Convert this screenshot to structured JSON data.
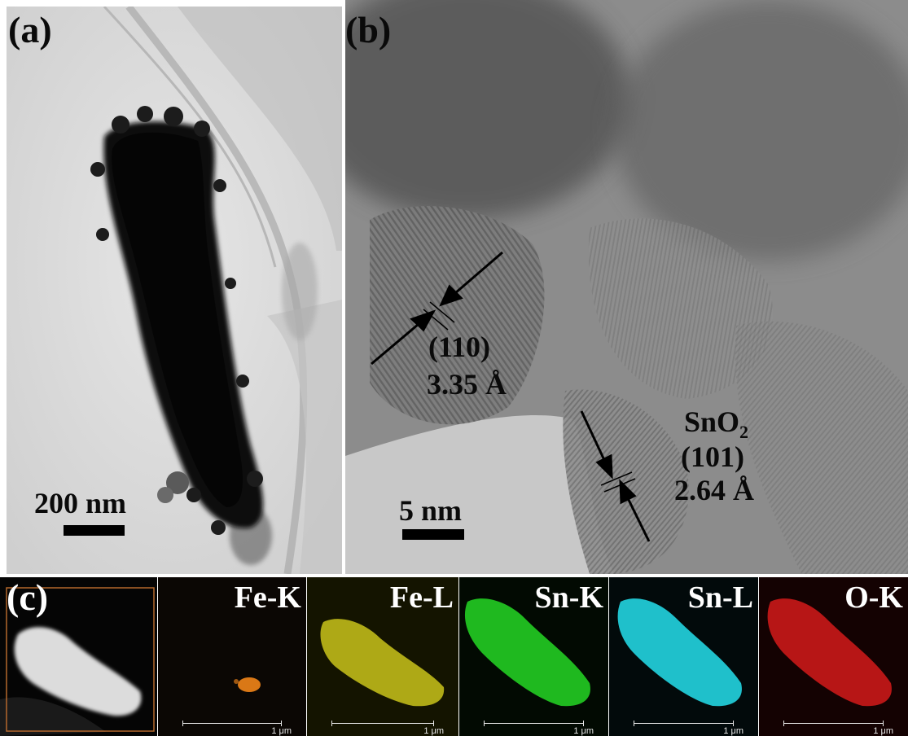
{
  "panel_a": {
    "label": "(a)",
    "scale_bar": "200 nm"
  },
  "panel_b": {
    "label": "(b)",
    "scale_bar": "5 nm",
    "annotation_1": {
      "plane": "(110)",
      "spacing": "3.35 Å"
    },
    "annotation_2": {
      "phase": "SnO",
      "subscript": "2",
      "plane": "(101)",
      "spacing": "2.64 Å"
    }
  },
  "panel_c": {
    "label": "(c)",
    "maps": [
      {
        "element": "Fe-K",
        "scale": "1 μm",
        "color": "#ff8c1a"
      },
      {
        "element": "Fe-L",
        "scale": "1 μm",
        "color": "#e6e21e"
      },
      {
        "element": "Sn-K",
        "scale": "1 μm",
        "color": "#22dd22"
      },
      {
        "element": "Sn-L",
        "scale": "1 μm",
        "color": "#22e6f0"
      },
      {
        "element": "O-K",
        "scale": "1 μm",
        "color": "#ee1c1c"
      }
    ]
  }
}
